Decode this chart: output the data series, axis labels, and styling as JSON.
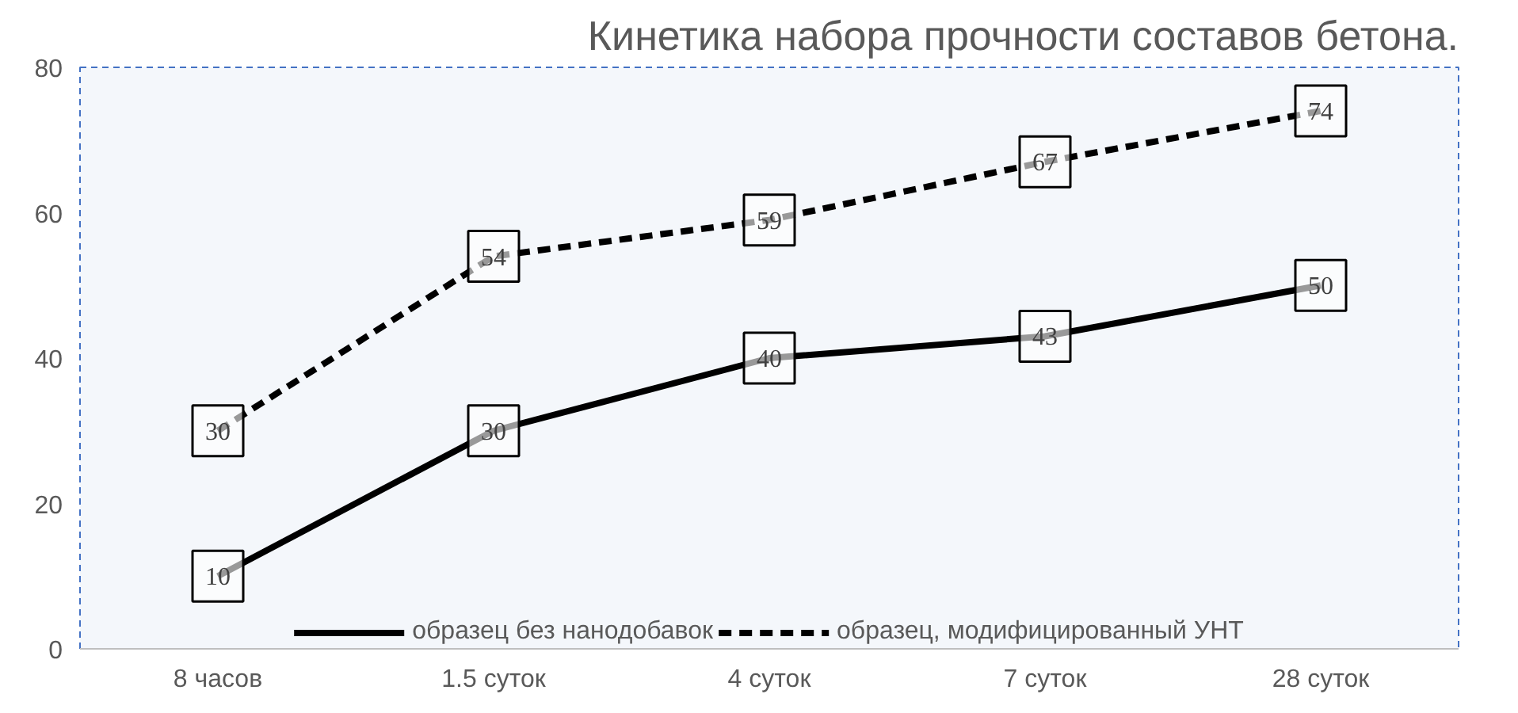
{
  "chart_data": {
    "type": "line",
    "title": "Кинетика набора прочности составов бетона.",
    "categories": [
      "8 часов",
      "1.5 суток",
      "4 суток",
      "7 суток",
      "28 суток"
    ],
    "series": [
      {
        "name": "образец без нанодобавок",
        "color": "#000000",
        "line_style": "solid",
        "values": [
          10,
          30,
          40,
          43,
          50
        ]
      },
      {
        "name": "образец, модифицированный УНТ",
        "color": "#000000",
        "line_style": "dashed",
        "values": [
          30,
          54,
          59,
          67,
          74
        ]
      }
    ],
    "ylim": [
      0,
      80
    ],
    "yticks": [
      0,
      20,
      40,
      60,
      80
    ],
    "grid": false,
    "legend": "bottom",
    "data_labels": true,
    "marker": "square"
  }
}
